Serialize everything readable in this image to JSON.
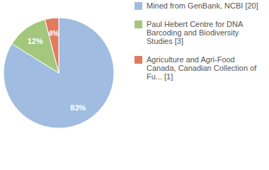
{
  "chart_data": {
    "type": "pie",
    "categories": [
      "Mined from GenBank, NCBI [20]",
      "Paul Hebert Centre for DNA Barcoding and Biodiversity Studies [3]",
      "Agriculture and Agri-Food Canada, Canadian Collection of Fu... [1]"
    ],
    "values": [
      83,
      12,
      4
    ],
    "value_labels": [
      "83%",
      "12%",
      "4%"
    ],
    "colors": [
      "#a0bce0",
      "#a3c77d",
      "#e07b5f"
    ],
    "data_labels": true,
    "legend": "right"
  }
}
